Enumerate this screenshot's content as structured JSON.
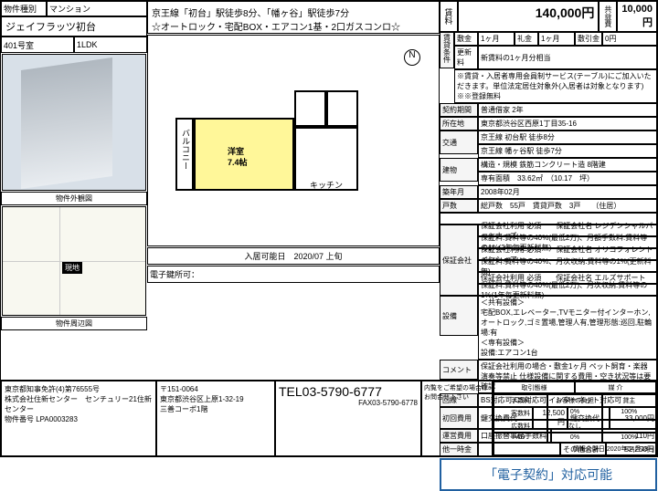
{
  "header": {
    "type_label": "物件種別",
    "type_value": "マンション",
    "property_name": "ジェイフラッツ初台",
    "room_no": "401号室",
    "layout": "1LDK"
  },
  "headline": {
    "line1": "京王線「初台」駅徒歩8分、「幡ヶ谷」駅徒歩7分",
    "line2": "☆オートロック・宅配BOX・エアコン1基・2口ガスコンロ☆"
  },
  "captions": {
    "photo": "物件外観図",
    "map": "物件周辺図",
    "marker": "現地"
  },
  "floorplan": {
    "main_room": "洋室",
    "main_size": "7.4帖",
    "kitchen": "キッチン",
    "balcony": "バルコニー",
    "compass": "N"
  },
  "availability": {
    "label": "入居可能日",
    "value": "2020/07 上旬",
    "elock_label": "電子鍵所可："
  },
  "rent": {
    "rent_label": "賃料",
    "rent_value": "140,000円",
    "mgmt_label": "共益費",
    "mgmt_value": "10,000円"
  },
  "conditions": {
    "group_label": "賃貸条件",
    "shikikin_label": "敷金",
    "shikikin": "1ヶ月",
    "reikin_label": "礼金",
    "reikin": "1ヶ月",
    "shokyaku_label": "敷引金",
    "shokyaku": "0円",
    "renewal_label": "更新料",
    "renewal": "新賃料の1ヶ月分相当",
    "note": "※賃貸・入居者専用会員制サービス(テーブル)にご加入いただきます。単位法定居住対象外(入居者は対象となります)　※※登録無料"
  },
  "details": {
    "term_label": "契約期間",
    "term": "普通借家 2年",
    "addr_label": "所在地",
    "addr": "東京都渋谷区西原1丁目35-16",
    "access_label": "交通",
    "access1": "京王線 初台駅 徒歩8分",
    "access2": "京王線 幡ヶ谷駅 徒歩7分",
    "building_label": "建物",
    "structure": "構造・規模 鉄筋コンクリート造 8階建",
    "area": "専有面積　33.62㎡　（10.17　坪）",
    "built_label": "築年月",
    "built": "2008年02月",
    "units_label": "戸数",
    "units": "総戸数　55戸　賃貸戸数　3戸　　（住居）"
  },
  "guarantee": {
    "label": "保証会社",
    "rows": [
      "保証会社利用 必須　　保証会社名 レジデンシャルパートナーズ",
      "保証料:賃料等の40%(最低2万)、月額手数料:賃料等の1%(2年毎更新料無)",
      "保証会社利用 必須　　保証会社名 オリコフォレントインシュア",
      "保証料:賃料等の40%、月次収納:賃料等の1%(更新料無)",
      "保証会社利用 必須　　保証会社名 エルズサポート",
      "保証料:賃料等の40%(最低2万)、月次収納:賃料等の1%(1年毎更新料無)"
    ]
  },
  "equipment": {
    "label": "設備",
    "shared_label": "＜共有設備＞",
    "shared": "宅配BOX,エレベーター,TVモニター付インターホン,オートロック,ゴミ置場,管理人有,管理形態:巡回,駐輪場:有",
    "private_label": "＜専有設備＞",
    "private": "設備:エアコン1台"
  },
  "comment": {
    "label": "コメント",
    "text": "保証会社利用の場合・敷金1ヶ月 ペット飼育・楽器演奏等禁止 仕様設備に関する費用・空き状況等は要確認"
  },
  "connection": {
    "label": "回線",
    "text": "BS対応可,CS対応可,インターネット対応可"
  },
  "fees": {
    "initial_label": "初回費用",
    "teigaku_label": "鍵交換費代",
    "teigaku": "12,500円",
    "kagi_label": "鍵交換代",
    "kagi": "33,000円",
    "monthly_label": "運営費用",
    "kanri_label": "口座振替事務手数料",
    "kanri": "110円",
    "other_label": "他一時金",
    "total_label": "その他合計",
    "total": "52,250円"
  },
  "econtract": "「電子契約」対応可能",
  "footer": {
    "license": "東京都知事免許(4)第76555号",
    "company": "株式会社住新センター　センチュリー21住新センター",
    "property_no_label": "物件番号",
    "property_no": "LPA0003283",
    "postal": "〒151-0064",
    "office_addr": "東京都渋谷区上原1-32-19",
    "office_bldg": "三善コーポ1階",
    "tel": "TEL03-5790-6777",
    "fax": "FAX03-5790-6778",
    "note_title": "内覧をご希望の場合はお問合せ下さい",
    "table": {
      "h1": "取引態様",
      "h2": "媒 介",
      "r1a": "手数料",
      "r1b": "お客様の負担",
      "r1c": "貸主",
      "r2a": "客数料",
      "r2b": "0%",
      "r2c": "100%",
      "r3a": "広数料",
      "r3b": "なし",
      "r4a": "AD",
      "r4b": "0%",
      "r4c": "100%"
    },
    "updated": "情報公開日:2020年04月18日"
  }
}
